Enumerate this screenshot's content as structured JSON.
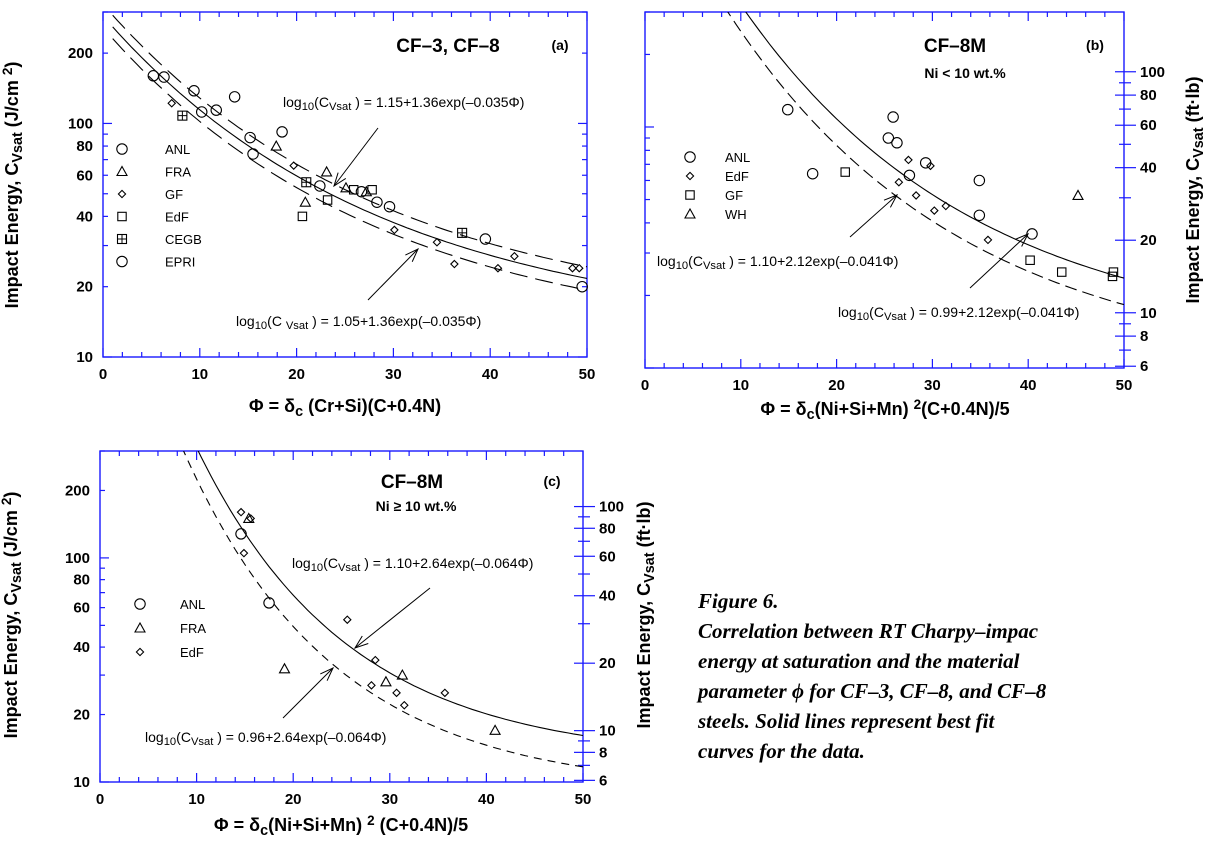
{
  "caption": {
    "figure_label": "Figure 6.",
    "lines": [
      "Correlation between RT Charpy–impac",
      "energy at saturation and the material",
      "parameter ϕ  for CF–3, CF–8, and CF–8",
      "steels.  Solid lines represent best fit",
      "curves for the data."
    ]
  },
  "colors": {
    "axis": "#1a1aff",
    "ink": "#000000"
  },
  "chart_data": [
    {
      "id": "a",
      "type": "scatter",
      "panel_label": "(a)",
      "title": "CF–3, CF–8",
      "subtitle": "",
      "xlabel": "Φ = δc (Cr+Si)(C+0.4N)",
      "ylabel": "Impact Energy, CVsat (J/cm 2)",
      "y2label": "",
      "xlim": [
        0,
        50
      ],
      "ylim": [
        10,
        300
      ],
      "yscale": "log",
      "x_ticks": [
        0,
        10,
        20,
        30,
        40,
        50
      ],
      "y_ticks": [
        10,
        20,
        40,
        60,
        80,
        100,
        200
      ],
      "y2_ticks": [],
      "legend": [
        {
          "label": "ANL",
          "marker": "circle"
        },
        {
          "label": "FRA",
          "marker": "triangle"
        },
        {
          "label": "GF",
          "marker": "diamond"
        },
        {
          "label": "EdF",
          "marker": "square"
        },
        {
          "label": "CEGB",
          "marker": "crossed-square"
        },
        {
          "label": "EPRI",
          "marker": "circle"
        }
      ],
      "series": [
        {
          "name": "ANL",
          "marker": "circle",
          "points": [
            [
              5.2,
              160
            ],
            [
              6.3,
              158
            ],
            [
              9.4,
              138
            ],
            [
              10.2,
              112
            ],
            [
              11.7,
              114
            ],
            [
              13.6,
              130
            ],
            [
              15.2,
              87
            ],
            [
              15.5,
              74
            ],
            [
              18.5,
              92
            ],
            [
              22.4,
              54
            ],
            [
              26.7,
              51
            ],
            [
              28.3,
              46
            ],
            [
              29.6,
              44
            ],
            [
              39.5,
              32
            ],
            [
              49.5,
              20
            ]
          ]
        },
        {
          "name": "FRA",
          "marker": "triangle",
          "points": [
            [
              17.9,
              80
            ],
            [
              20.9,
              46
            ],
            [
              23.1,
              62
            ],
            [
              25.1,
              53
            ],
            [
              27.2,
              51
            ]
          ]
        },
        {
          "name": "GF",
          "marker": "diamond",
          "points": [
            [
              7.1,
              122
            ],
            [
              19.7,
              66
            ],
            [
              30.1,
              35
            ],
            [
              34.5,
              31
            ],
            [
              36.3,
              25
            ],
            [
              40.8,
              24
            ],
            [
              42.5,
              27
            ],
            [
              48.5,
              24
            ],
            [
              49.2,
              24
            ]
          ]
        },
        {
          "name": "EdF",
          "marker": "square",
          "points": [
            [
              20.6,
              40
            ],
            [
              23.2,
              47
            ],
            [
              25.9,
              52
            ],
            [
              27.8,
              52
            ]
          ]
        },
        {
          "name": "CEGB",
          "marker": "crossed-square",
          "points": [
            [
              8.2,
              108
            ],
            [
              21.0,
              56
            ],
            [
              37.1,
              34
            ]
          ]
        }
      ],
      "curves": [
        {
          "a": 1.15,
          "b": 1.36,
          "c": 0.035,
          "style": "long-dash",
          "label": "log10(CVsat ) = 1.15+1.36exp(–0.035Φ)"
        },
        {
          "a": 1.1,
          "b": 1.36,
          "c": 0.035,
          "style": "solid",
          "label": ""
        },
        {
          "a": 1.05,
          "b": 1.36,
          "c": 0.035,
          "style": "long-dash",
          "label": "log10(C Vsat ) = 1.05+1.36exp(–0.035Φ)"
        }
      ]
    },
    {
      "id": "b",
      "type": "scatter",
      "panel_label": "(b)",
      "title": "CF–8M",
      "subtitle": "Ni < 10 wt.%",
      "xlabel": "Φ = δc(Ni+Si+Mn) 2(C+0.4N)/5",
      "ylabel": "",
      "y2label": "Impact Energy, CVsat (ft·lb)",
      "xlim": [
        0,
        50
      ],
      "ylim": [
        10,
        300
      ],
      "yscale": "log",
      "x_ticks": [
        0,
        10,
        20,
        30,
        40,
        50
      ],
      "y_ticks": [],
      "y2_ticks": [
        6,
        8,
        10,
        20,
        40,
        60,
        80,
        100
      ],
      "legend": [
        {
          "label": "ANL",
          "marker": "circle"
        },
        {
          "label": "EdF",
          "marker": "diamond"
        },
        {
          "label": "GF",
          "marker": "square"
        },
        {
          "label": "WH",
          "marker": "triangle"
        }
      ],
      "series": [
        {
          "name": "ANL",
          "marker": "circle",
          "points": [
            [
              14.9,
              118
            ],
            [
              17.5,
              64
            ],
            [
              25.4,
              90
            ],
            [
              25.9,
              110
            ],
            [
              26.3,
              86
            ],
            [
              27.6,
              63
            ],
            [
              29.3,
              71
            ],
            [
              34.9,
              60
            ],
            [
              34.9,
              43
            ],
            [
              40.4,
              36
            ]
          ]
        },
        {
          "name": "EdF",
          "marker": "diamond",
          "points": [
            [
              26.5,
              59
            ],
            [
              27.5,
              73
            ],
            [
              28.3,
              52
            ],
            [
              29.8,
              69
            ],
            [
              30.2,
              45
            ],
            [
              31.4,
              47
            ],
            [
              35.8,
              34
            ]
          ]
        },
        {
          "name": "GF",
          "marker": "square",
          "points": [
            [
              20.9,
              65
            ],
            [
              40.2,
              28
            ],
            [
              43.5,
              25
            ],
            [
              48.8,
              24
            ],
            [
              48.9,
              25
            ]
          ]
        },
        {
          "name": "WH",
          "marker": "triangle",
          "points": [
            [
              45.2,
              52
            ]
          ]
        }
      ],
      "curves": [
        {
          "a": 1.1,
          "b": 2.12,
          "c": 0.041,
          "style": "solid",
          "label": "log10(CVsat ) = 1.10+2.12exp(–0.041Φ)"
        },
        {
          "a": 0.99,
          "b": 2.12,
          "c": 0.041,
          "style": "medium-dash",
          "label": "log10(CVsat ) = 0.99+2.12exp(–0.041Φ)"
        }
      ]
    },
    {
      "id": "c",
      "type": "scatter",
      "panel_label": "(c)",
      "title": "CF–8M",
      "subtitle": "Ni ≥ 10 wt.%",
      "xlabel": "Φ = δc(Ni+Si+Mn) 2 (C+0.4N)/5",
      "ylabel": "Impact Energy, CVsat (J/cm 2)",
      "y2label": "Impact Energy, CVsat (ft·lb)",
      "xlim": [
        0,
        50
      ],
      "ylim": [
        10,
        300
      ],
      "yscale": "log",
      "x_ticks": [
        0,
        10,
        20,
        30,
        40,
        50
      ],
      "y_ticks": [
        10,
        20,
        40,
        60,
        80,
        100,
        200
      ],
      "y2_ticks": [
        6,
        8,
        10,
        20,
        40,
        60,
        80,
        100
      ],
      "legend": [
        {
          "label": "ANL",
          "marker": "circle"
        },
        {
          "label": "FRA",
          "marker": "triangle"
        },
        {
          "label": "EdF",
          "marker": "diamond"
        }
      ],
      "series": [
        {
          "name": "ANL",
          "marker": "circle",
          "points": [
            [
              14.6,
              128
            ],
            [
              17.5,
              63
            ]
          ]
        },
        {
          "name": "FRA",
          "marker": "triangle",
          "points": [
            [
              15.4,
              150
            ],
            [
              19.1,
              32
            ],
            [
              29.6,
              28
            ],
            [
              31.3,
              30
            ],
            [
              40.9,
              17
            ]
          ]
        },
        {
          "name": "EdF",
          "marker": "diamond",
          "points": [
            [
              14.6,
              160
            ],
            [
              14.9,
              105
            ],
            [
              15.6,
              150
            ],
            [
              25.6,
              53
            ],
            [
              28.1,
              27
            ],
            [
              28.5,
              35
            ],
            [
              30.7,
              25
            ],
            [
              31.5,
              22
            ],
            [
              35.7,
              25
            ]
          ]
        }
      ],
      "curves": [
        {
          "a": 1.1,
          "b": 2.64,
          "c": 0.064,
          "style": "solid",
          "label": "log10(CVsat ) = 1.10+2.64exp(–0.064Φ)"
        },
        {
          "a": 0.96,
          "b": 2.64,
          "c": 0.064,
          "style": "short-dash",
          "label": "log10(CVsat ) = 0.96+2.64exp(–0.064Φ)"
        }
      ]
    }
  ]
}
